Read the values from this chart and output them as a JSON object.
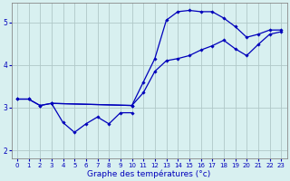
{
  "background_color": "#d8f0f0",
  "grid_color": "#b0c8c8",
  "line_color": "#0000bb",
  "xlabel": "Graphe des températures (°c)",
  "xlim": [
    -0.5,
    23.5
  ],
  "ylim": [
    1.8,
    5.45
  ],
  "yticks": [
    2,
    3,
    4,
    5
  ],
  "xticks": [
    0,
    1,
    2,
    3,
    4,
    5,
    6,
    7,
    8,
    9,
    10,
    11,
    12,
    13,
    14,
    15,
    16,
    17,
    18,
    19,
    20,
    21,
    22,
    23
  ],
  "series": [
    {
      "x": [
        0,
        1,
        2,
        3,
        10,
        11,
        12,
        13,
        14,
        15,
        16,
        17,
        18,
        19,
        20,
        21,
        22,
        23
      ],
      "y": [
        3.2,
        3.2,
        3.05,
        3.1,
        3.05,
        3.6,
        4.15,
        5.05,
        5.25,
        5.28,
        5.25,
        5.25,
        5.1,
        4.9,
        4.65,
        4.72,
        4.82,
        4.82
      ]
    },
    {
      "x": [
        3,
        4,
        5,
        6,
        7,
        8,
        9,
        10
      ],
      "y": [
        3.1,
        2.65,
        2.42,
        2.62,
        2.78,
        2.62,
        2.88,
        2.88
      ]
    },
    {
      "x": [
        0,
        1,
        2,
        3,
        10,
        11,
        12,
        13,
        14,
        15,
        16,
        17,
        18,
        19,
        20,
        21,
        22,
        23
      ],
      "y": [
        3.2,
        3.2,
        3.05,
        3.1,
        3.05,
        3.35,
        3.85,
        4.1,
        4.15,
        4.22,
        4.35,
        4.45,
        4.58,
        4.38,
        4.22,
        4.48,
        4.72,
        4.78
      ]
    }
  ]
}
